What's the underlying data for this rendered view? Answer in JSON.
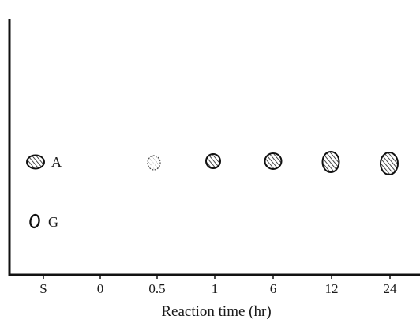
{
  "figure": {
    "xlabel": "Reaction time (hr)",
    "lanes": [
      "S",
      "0",
      "0.5",
      "1",
      "6",
      "12",
      "24"
    ],
    "standards": [
      {
        "label": "A",
        "style": "hatched"
      },
      {
        "label": "G",
        "style": "outline"
      }
    ],
    "sample_spots": [
      {
        "lane": "0.5",
        "style": "faint"
      },
      {
        "lane": "1",
        "style": "hatched"
      },
      {
        "lane": "6",
        "style": "hatched"
      },
      {
        "lane": "12",
        "style": "hatched"
      },
      {
        "lane": "24",
        "style": "hatched"
      }
    ]
  }
}
